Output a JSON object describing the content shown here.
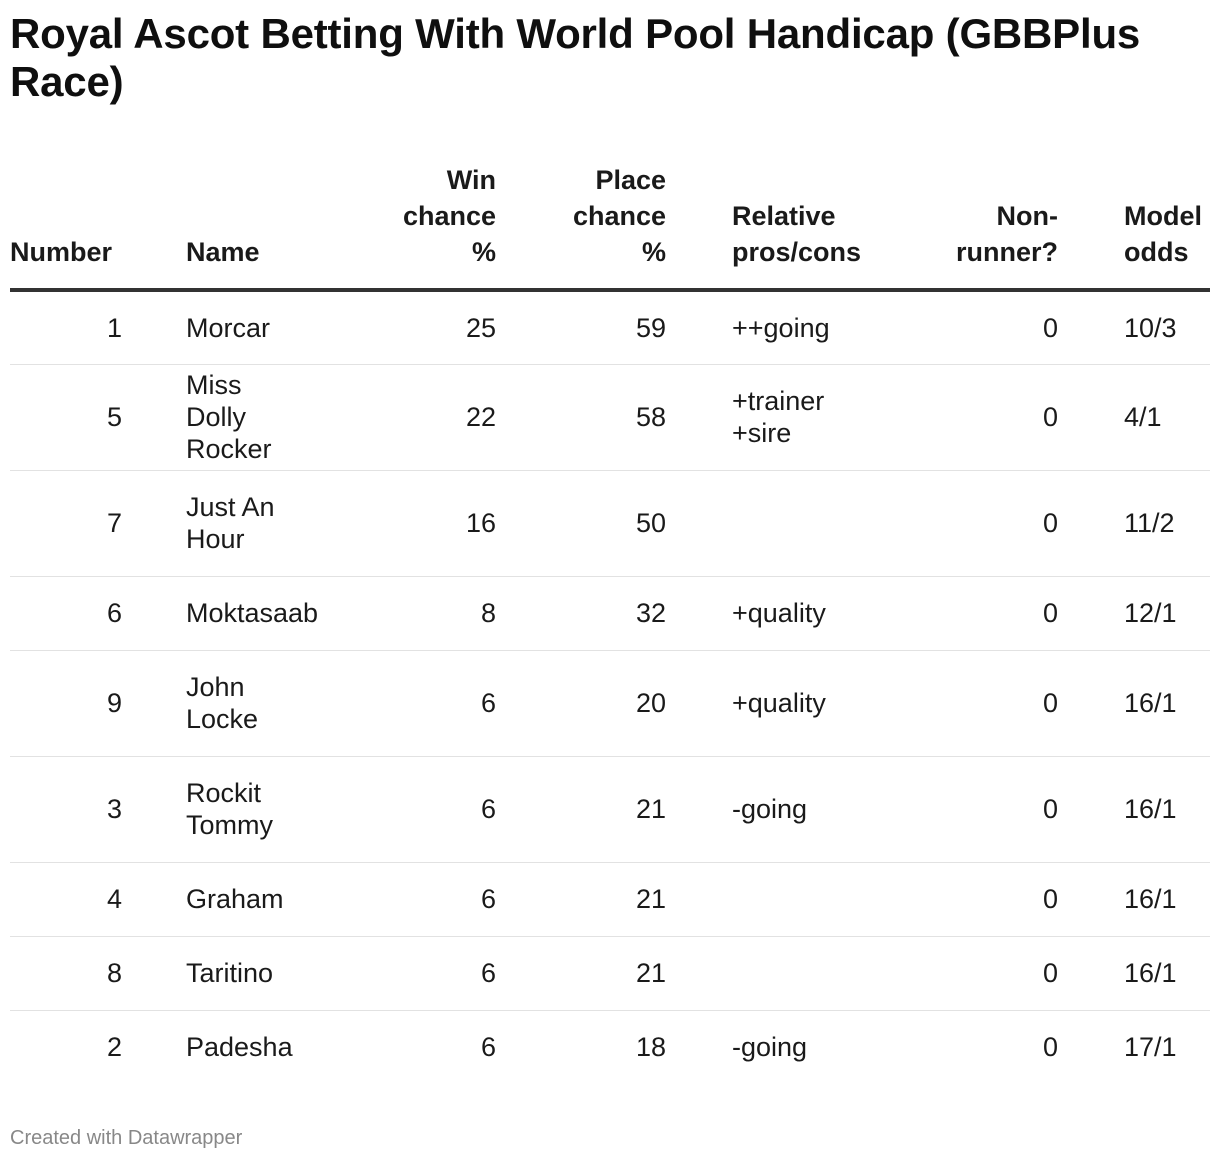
{
  "title": "Royal Ascot Betting With World Pool Handicap (GBBPlus Race)",
  "footer": "Created with Datawrapper",
  "chart_data": {
    "type": "table",
    "title": "Royal Ascot Betting With World Pool Handicap (GBBPlus Race)",
    "columns": [
      "Number",
      "Name",
      "Win chance %",
      "Place chance %",
      "Relative pros/cons",
      "Non-runner?",
      "Model odds"
    ],
    "rows": [
      {
        "number": "1",
        "name": "Morcar",
        "win": "25",
        "place": "59",
        "pros": "++going",
        "nonrunner": "0",
        "odds": "10/3"
      },
      {
        "number": "5",
        "name": "Miss Dolly Rocker",
        "win": "22",
        "place": "58",
        "pros": "+trainer\n+sire",
        "nonrunner": "0",
        "odds": "4/1"
      },
      {
        "number": "7",
        "name": "Just An Hour",
        "win": "16",
        "place": "50",
        "pros": "",
        "nonrunner": "0",
        "odds": "11/2"
      },
      {
        "number": "6",
        "name": "Moktasaab",
        "win": "8",
        "place": "32",
        "pros": "+quality",
        "nonrunner": "0",
        "odds": "12/1"
      },
      {
        "number": "9",
        "name": "John Locke",
        "win": "6",
        "place": "20",
        "pros": "+quality",
        "nonrunner": "0",
        "odds": "16/1"
      },
      {
        "number": "3",
        "name": "Rockit Tommy",
        "win": "6",
        "place": "21",
        "pros": "-going",
        "nonrunner": "0",
        "odds": "16/1"
      },
      {
        "number": "4",
        "name": "Graham",
        "win": "6",
        "place": "21",
        "pros": "",
        "nonrunner": "0",
        "odds": "16/1"
      },
      {
        "number": "8",
        "name": "Taritino",
        "win": "6",
        "place": "21",
        "pros": "",
        "nonrunner": "0",
        "odds": "16/1"
      },
      {
        "number": "2",
        "name": "Padesha",
        "win": "6",
        "place": "18",
        "pros": "-going",
        "nonrunner": "0",
        "odds": "17/1"
      }
    ]
  }
}
